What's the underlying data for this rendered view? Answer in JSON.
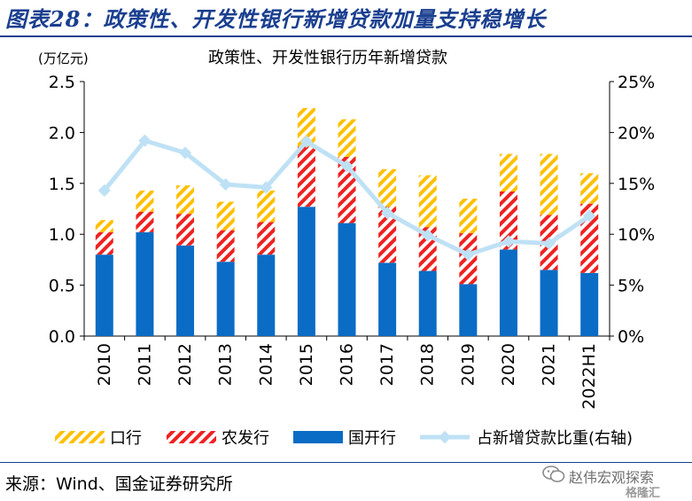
{
  "header": {
    "title": "图表28：政策性、开发性银行新增贷款加量支持稳增长"
  },
  "chart_data": {
    "type": "bar",
    "stacked": true,
    "title": "政策性、开发性银行历年新增贷款",
    "ylabel": "(万亿元)",
    "categories": [
      "2010",
      "2011",
      "2012",
      "2013",
      "2014",
      "2015",
      "2016",
      "2017",
      "2018",
      "2019",
      "2020",
      "2021",
      "2022H1"
    ],
    "ylim": [
      0,
      2.5
    ],
    "yticks": [
      "0.0",
      "0.5",
      "1.0",
      "1.5",
      "2.0",
      "2.5"
    ],
    "y2lim": [
      0,
      0.25
    ],
    "y2ticks": [
      "0%",
      "5%",
      "10%",
      "15%",
      "20%",
      "25%"
    ],
    "series": [
      {
        "name": "国开行",
        "kind": "bar",
        "values": [
          0.8,
          1.02,
          0.89,
          0.73,
          0.8,
          1.27,
          1.11,
          0.72,
          0.64,
          0.51,
          0.85,
          0.65,
          0.62
        ]
      },
      {
        "name": "农发行",
        "kind": "bar",
        "values": [
          0.22,
          0.2,
          0.31,
          0.31,
          0.32,
          0.59,
          0.65,
          0.55,
          0.43,
          0.5,
          0.57,
          0.54,
          0.68
        ]
      },
      {
        "name": "口行",
        "kind": "bar",
        "values": [
          0.12,
          0.21,
          0.28,
          0.28,
          0.31,
          0.38,
          0.37,
          0.37,
          0.51,
          0.34,
          0.37,
          0.6,
          0.3
        ]
      },
      {
        "name": "占新增贷款比重(右轴)",
        "kind": "line",
        "axis": "right",
        "values": [
          0.143,
          0.192,
          0.18,
          0.149,
          0.146,
          0.191,
          0.167,
          0.121,
          0.099,
          0.08,
          0.093,
          0.091,
          0.118
        ]
      }
    ],
    "colors": {
      "国开行": "#0a6cc4",
      "农发行": "#ee2222",
      "口行": "#ffc000",
      "line": "#bfe1f5"
    },
    "legend_position": "bottom",
    "grid": false
  },
  "footer": {
    "source": "来源：Wind、国金证券研究所",
    "watermark": "赵伟宏观探索",
    "watermark_sub": "格隆汇"
  }
}
